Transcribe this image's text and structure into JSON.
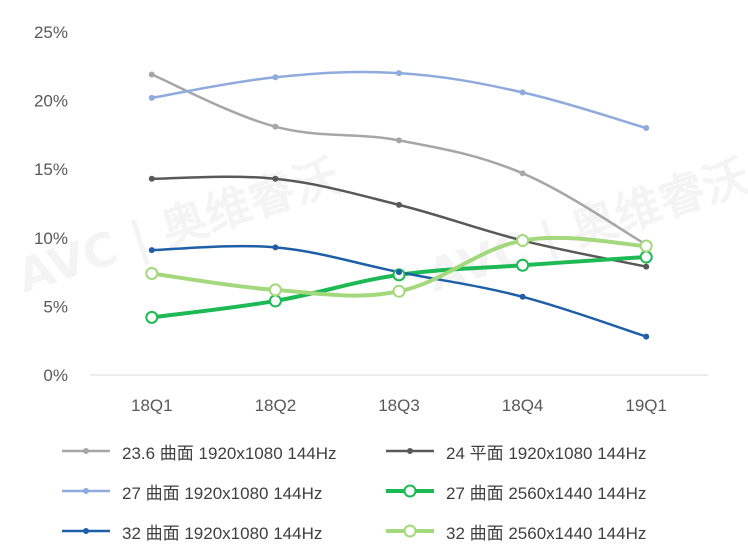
{
  "chart_data": {
    "type": "line",
    "categories": [
      "18Q1",
      "18Q2",
      "18Q3",
      "18Q4",
      "19Q1"
    ],
    "y_ticks": [
      "0%",
      "5%",
      "10%",
      "15%",
      "20%",
      "25%"
    ],
    "ylim": [
      0,
      25
    ],
    "y_unit": "%",
    "grid": false,
    "legend_position": "bottom",
    "series": [
      {
        "name": "23.6 曲面 1920x1080 144Hz",
        "color": "#a6a6a6",
        "marker": "dot",
        "values": [
          21.9,
          18.1,
          17.1,
          14.7,
          9.5
        ]
      },
      {
        "name": "24 平面 1920x1080 144Hz",
        "color": "#595959",
        "marker": "dot",
        "values": [
          14.3,
          14.3,
          12.4,
          9.8,
          7.9
        ]
      },
      {
        "name": "27 曲面 1920x1080 144Hz",
        "color": "#8faadc",
        "marker": "dot",
        "values": [
          20.2,
          21.7,
          22.0,
          20.6,
          18.0
        ]
      },
      {
        "name": "27 曲面 2560x1440 144Hz",
        "color": "#1db954",
        "marker": "circle",
        "values": [
          4.2,
          5.4,
          7.3,
          8.0,
          8.6
        ]
      },
      {
        "name": "32 曲面 1920x1080 144Hz",
        "color": "#1f5fa8",
        "marker": "dot",
        "values": [
          9.1,
          9.3,
          7.5,
          5.7,
          2.8
        ]
      },
      {
        "name": "32 曲面 2560x1440 144Hz",
        "color": "#a4d87c",
        "marker": "circle",
        "values": [
          7.4,
          6.2,
          6.1,
          9.8,
          9.4
        ]
      }
    ]
  },
  "watermark": {
    "text_left": "AVC | 奥维睿沃",
    "text_right": "AVC | 奥维睿沃"
  }
}
